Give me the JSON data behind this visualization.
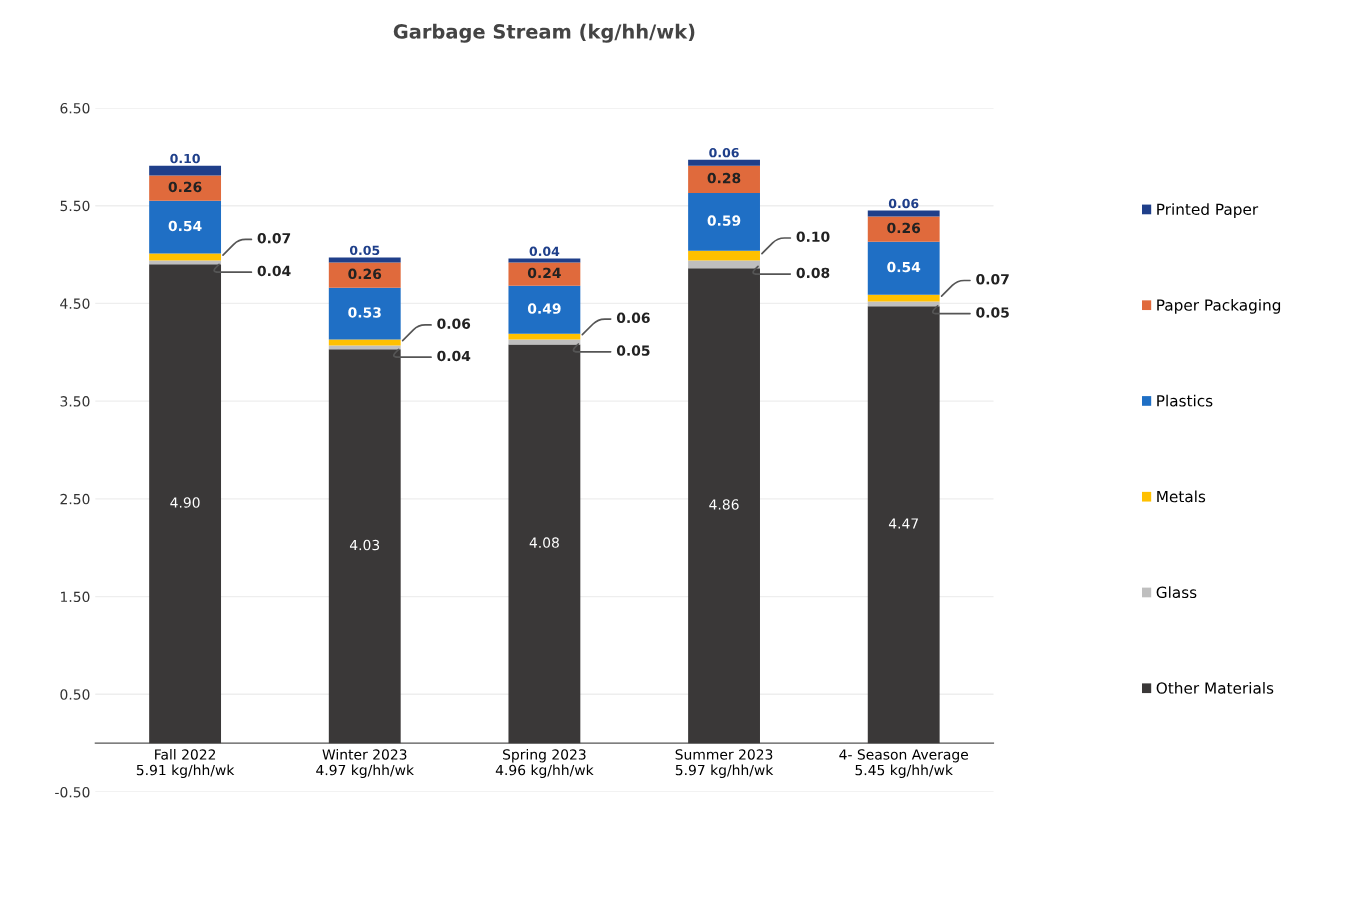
{
  "chart_data": {
    "type": "bar",
    "title": "Garbage Stream (kg/hh/wk)",
    "stacked": true,
    "categories": [
      "Fall 2022\n5.91 kg/hh/wk",
      "Winter 2023\n4.97 kg/hh/wk",
      "Spring 2023\n4.96 kg/hh/wk",
      "Summer 2023\n5.97 kg/hh/wk",
      "4- Season Average\n5.45 kg/hh/wk"
    ],
    "series": [
      {
        "name": "Other Materials",
        "color": "#3a3838",
        "values": [
          4.9,
          4.03,
          4.08,
          4.86,
          4.47
        ],
        "value_labels": [
          "4.90",
          "4.03",
          "4.08",
          "4.86",
          "4.47"
        ]
      },
      {
        "name": "Glass",
        "color": "#bfbfbf",
        "values": [
          0.04,
          0.04,
          0.05,
          0.08,
          0.05
        ],
        "value_labels": [
          "0.04",
          "0.04",
          "0.05",
          "0.08",
          "0.05"
        ]
      },
      {
        "name": "Metals",
        "color": "#ffc000",
        "values": [
          0.07,
          0.06,
          0.06,
          0.1,
          0.07
        ],
        "value_labels": [
          "0.07",
          "0.06",
          "0.06",
          "0.10",
          "0.07"
        ]
      },
      {
        "name": "Plastics",
        "color": "#1f6fc5",
        "values": [
          0.54,
          0.53,
          0.49,
          0.59,
          0.54
        ],
        "value_labels": [
          "0.54",
          "0.53",
          "0.49",
          "0.59",
          "0.54"
        ]
      },
      {
        "name": "Paper Packaging",
        "color": "#e06a3c",
        "values": [
          0.26,
          0.26,
          0.24,
          0.28,
          0.26
        ],
        "value_labels": [
          "0.26",
          "0.26",
          "0.24",
          "0.28",
          "0.26"
        ]
      },
      {
        "name": "Printed Paper",
        "color": "#1f3f8a",
        "values": [
          0.1,
          0.05,
          0.04,
          0.06,
          0.06
        ],
        "value_labels": [
          "0.10",
          "0.05",
          "0.04",
          "0.06",
          "0.06"
        ]
      }
    ],
    "ylim": [
      -0.5,
      6.5
    ],
    "yticks": [
      {
        "value": -0.5,
        "label": "-0.50"
      },
      {
        "value": 0.5,
        "label": "0.50"
      },
      {
        "value": 1.5,
        "label": "1.50"
      },
      {
        "value": 2.5,
        "label": "2.50"
      },
      {
        "value": 3.5,
        "label": "3.50"
      },
      {
        "value": 4.5,
        "label": "4.50"
      },
      {
        "value": 5.5,
        "label": "5.50"
      },
      {
        "value": 6.5,
        "label": "6.50"
      }
    ],
    "grid": "y",
    "legend": "right"
  }
}
